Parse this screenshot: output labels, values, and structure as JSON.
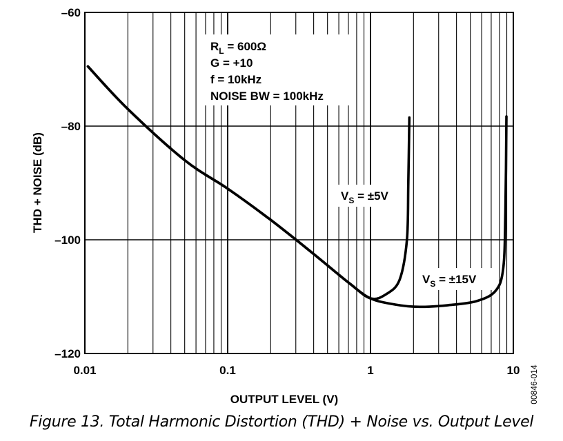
{
  "chart_data": {
    "type": "line",
    "xlabel": "OUTPUT LEVEL (V)",
    "ylabel": "THD + NOISE (dB)",
    "x_scale": "log",
    "xlim": [
      0.01,
      10
    ],
    "ylim": [
      -120,
      -60
    ],
    "x_ticks": [
      0.01,
      0.1,
      1,
      10
    ],
    "x_tick_labels": [
      "0.01",
      "0.1",
      "1",
      "10"
    ],
    "y_ticks": [
      -120,
      -100,
      -80,
      -60
    ],
    "y_tick_labels": [
      "–120",
      "–100",
      "–80",
      "–60"
    ],
    "grid": true,
    "conditions": [
      "R",
      "L",
      " = 600Ω",
      "G = +10",
      "f = 10kHz",
      "NOISE BW = 100kHz"
    ],
    "series": [
      {
        "name_parts": [
          "V",
          "S",
          " = ±5V"
        ],
        "x": [
          0.0105,
          0.02,
          0.05,
          0.1,
          0.2,
          0.4,
          0.7,
          1.0,
          1.3,
          1.6,
          1.8,
          1.84,
          1.87
        ],
        "y": [
          -69.5,
          -77,
          -86,
          -91,
          -96.5,
          -102.5,
          -107.5,
          -110.3,
          -109.5,
          -107,
          -100,
          -90,
          -78.5
        ]
      },
      {
        "name_parts": [
          "V",
          "S",
          " = ±15V"
        ],
        "x": [
          0.0105,
          0.02,
          0.05,
          0.1,
          0.2,
          0.4,
          0.7,
          1.0,
          1.5,
          2.2,
          3.5,
          5.5,
          7.5,
          8.5,
          8.8,
          8.95
        ],
        "y": [
          -69.5,
          -77,
          -86,
          -91,
          -96.5,
          -102.5,
          -107.5,
          -110.3,
          -111.4,
          -111.8,
          -111.5,
          -110.8,
          -109,
          -105,
          -95,
          -78.3
        ]
      }
    ]
  },
  "figure_id": "00846-014",
  "caption": "Figure 13. Total Harmonic Distortion (THD) + Noise vs. Output Level"
}
